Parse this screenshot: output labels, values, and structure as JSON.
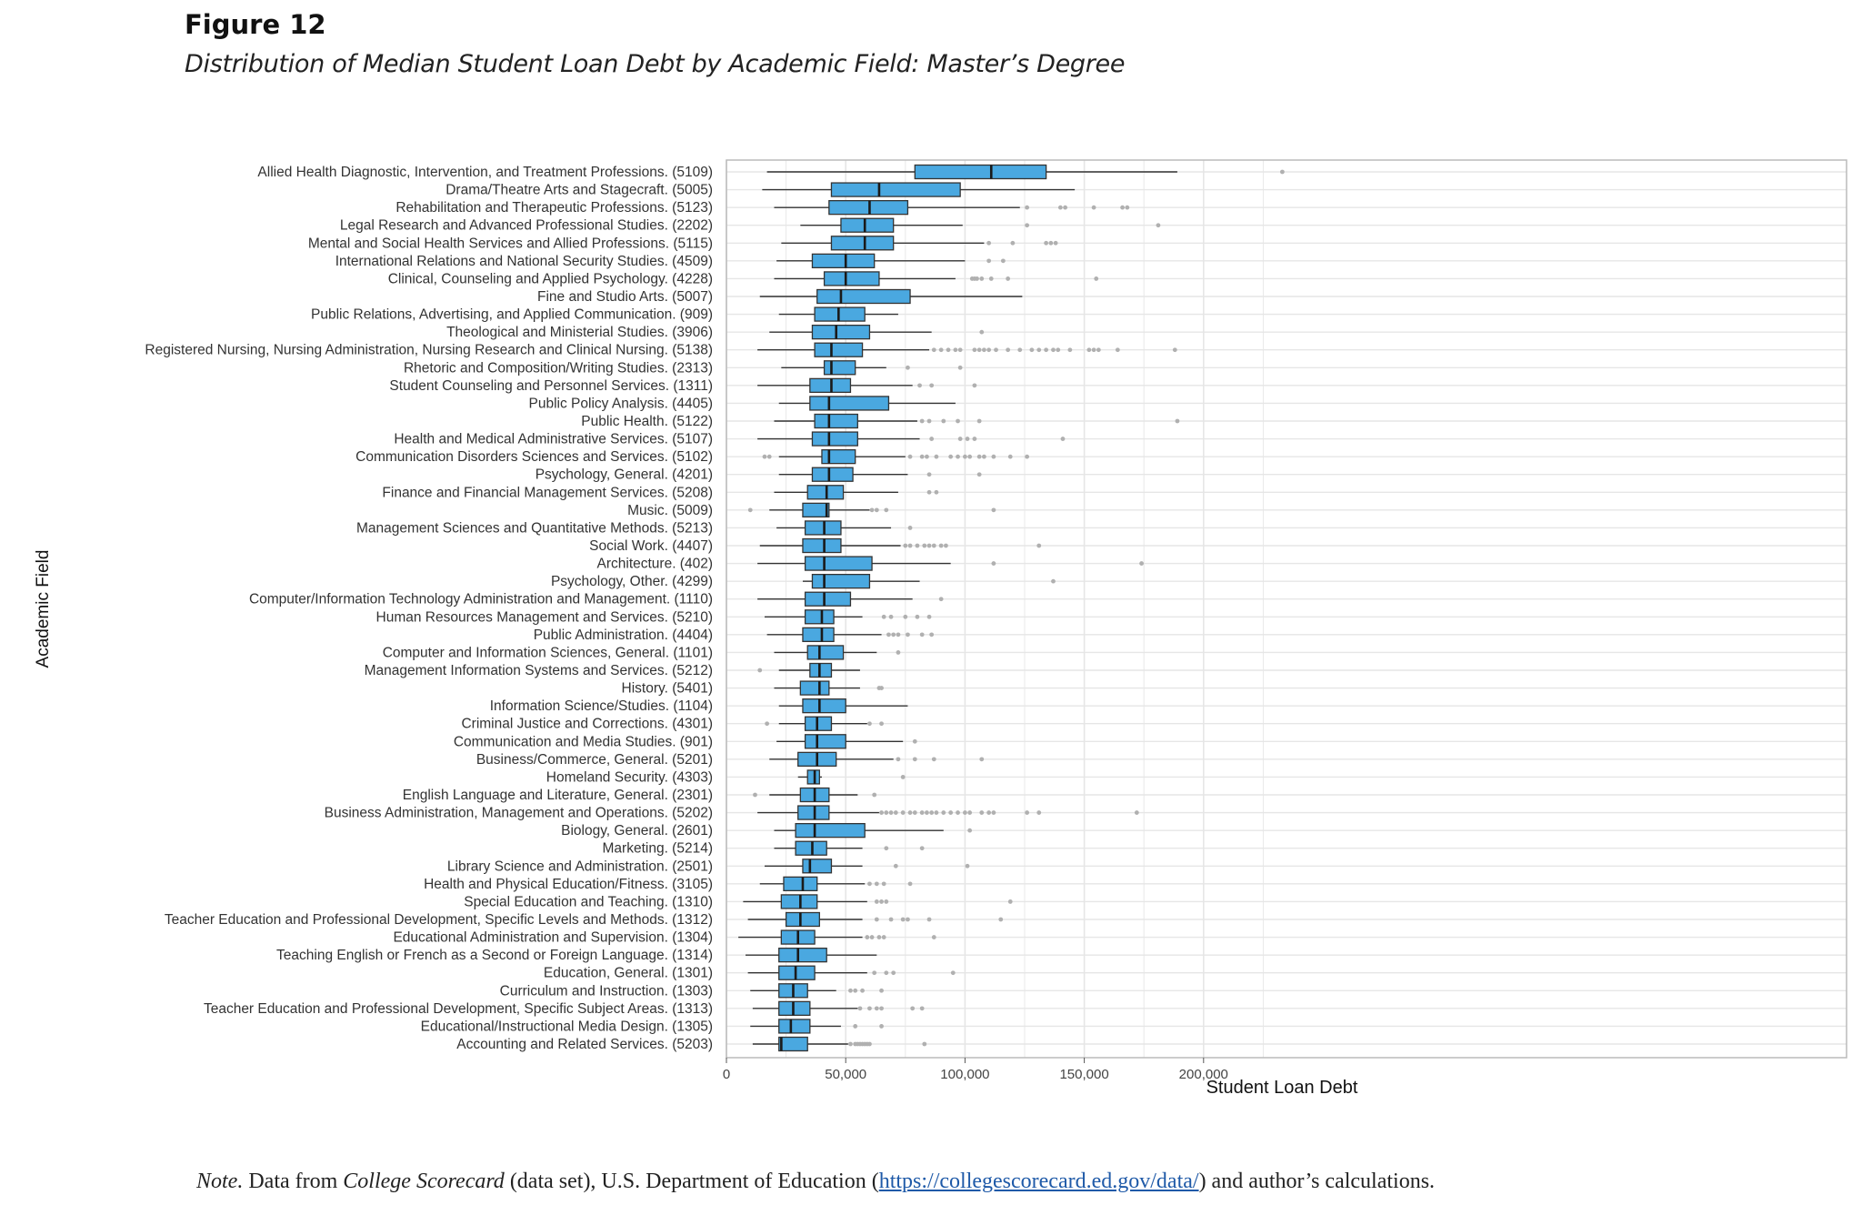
{
  "figure_label": "Figure 12",
  "figure_title": "Distribution of Median Student Loan Debt by Academic Field: Master’s Degree",
  "note": {
    "lead": "Note.",
    "text1": " Data from ",
    "source_title": "College Scorecard",
    "text2": " (data set), U.S. Department of Education (",
    "link": "https://collegescorecard.ed.gov/data/",
    "text3": ") and author’s calculations."
  },
  "colors": {
    "box_fill": "#4aa8e0",
    "box_stroke": "#333333",
    "outlier": "#b0b0b0",
    "grid": "#e6e6e6",
    "panel_border": "#bbbbbb"
  },
  "chart_data": {
    "type": "boxplot",
    "orientation": "horizontal",
    "xlabel": "Student Loan Debt",
    "ylabel": "Academic Field",
    "xlim": [
      0,
      235000
    ],
    "xticks": [
      0,
      50000,
      100000,
      150000,
      200000
    ],
    "xtick_labels": [
      "0",
      "50,000",
      "100,000",
      "150,000",
      "200,000"
    ],
    "grid": true,
    "categories": [
      {
        "label": "Allied Health Diagnostic, Intervention, and Treatment Professions. (5109)",
        "whisker_low": 17000,
        "q1": 79000,
        "median": 111000,
        "q3": 134000,
        "whisker_high": 189000,
        "outliers": [
          233000
        ]
      },
      {
        "label": "Drama/Theatre Arts and Stagecraft. (5005)",
        "whisker_low": 15000,
        "q1": 44000,
        "median": 64000,
        "q3": 98000,
        "whisker_high": 146000,
        "outliers": []
      },
      {
        "label": "Rehabilitation and Therapeutic Professions. (5123)",
        "whisker_low": 20000,
        "q1": 43000,
        "median": 60000,
        "q3": 76000,
        "whisker_high": 123000,
        "outliers": [
          126000,
          140000,
          142000,
          154000,
          166000,
          168000
        ]
      },
      {
        "label": "Legal Research and Advanced Professional Studies. (2202)",
        "whisker_low": 31000,
        "q1": 48000,
        "median": 58000,
        "q3": 70000,
        "whisker_high": 99000,
        "outliers": [
          126000,
          181000
        ]
      },
      {
        "label": "Mental and Social Health Services and Allied Professions. (5115)",
        "whisker_low": 23000,
        "q1": 44000,
        "median": 58000,
        "q3": 70000,
        "whisker_high": 108000,
        "outliers": [
          110000,
          120000,
          134000,
          136000,
          138000
        ]
      },
      {
        "label": "International Relations and National Security Studies. (4509)",
        "whisker_low": 21000,
        "q1": 36000,
        "median": 50000,
        "q3": 62000,
        "whisker_high": 100000,
        "outliers": [
          110000,
          116000
        ]
      },
      {
        "label": "Clinical, Counseling and Applied Psychology. (4228)",
        "whisker_low": 20000,
        "q1": 41000,
        "median": 50000,
        "q3": 64000,
        "whisker_high": 96000,
        "outliers": [
          103000,
          104000,
          105000,
          107000,
          111000,
          118000,
          155000
        ]
      },
      {
        "label": "Fine and Studio Arts. (5007)",
        "whisker_low": 14000,
        "q1": 38000,
        "median": 48000,
        "q3": 77000,
        "whisker_high": 124000,
        "outliers": []
      },
      {
        "label": "Public Relations, Advertising, and Applied Communication. (909)",
        "whisker_low": 22000,
        "q1": 37000,
        "median": 47000,
        "q3": 58000,
        "whisker_high": 72000,
        "outliers": []
      },
      {
        "label": "Theological and Ministerial Studies. (3906)",
        "whisker_low": 18000,
        "q1": 36000,
        "median": 46000,
        "q3": 60000,
        "whisker_high": 86000,
        "outliers": [
          107000
        ]
      },
      {
        "label": "Registered Nursing, Nursing Administration, Nursing Research and Clinical Nursing. (5138)",
        "whisker_low": 13000,
        "q1": 37000,
        "median": 44000,
        "q3": 57000,
        "whisker_high": 85000,
        "outliers": [
          87000,
          90000,
          93000,
          96000,
          98000,
          104000,
          106000,
          108000,
          110000,
          113000,
          118000,
          123000,
          128000,
          131000,
          134000,
          137000,
          139000,
          144000,
          152000,
          154000,
          156000,
          164000,
          188000
        ]
      },
      {
        "label": "Rhetoric and Composition/Writing Studies. (2313)",
        "whisker_low": 23000,
        "q1": 41000,
        "median": 44000,
        "q3": 54000,
        "whisker_high": 67000,
        "outliers": [
          76000,
          98000
        ]
      },
      {
        "label": "Student Counseling and Personnel Services. (1311)",
        "whisker_low": 13000,
        "q1": 35000,
        "median": 44000,
        "q3": 52000,
        "whisker_high": 78000,
        "outliers": [
          81000,
          86000,
          104000
        ]
      },
      {
        "label": "Public Policy Analysis. (4405)",
        "whisker_low": 22000,
        "q1": 35000,
        "median": 43000,
        "q3": 68000,
        "whisker_high": 96000,
        "outliers": []
      },
      {
        "label": "Public Health. (5122)",
        "whisker_low": 20000,
        "q1": 37000,
        "median": 43000,
        "q3": 55000,
        "whisker_high": 80000,
        "outliers": [
          82000,
          85000,
          91000,
          97000,
          106000,
          189000
        ]
      },
      {
        "label": "Health and Medical Administrative Services. (5107)",
        "whisker_low": 13000,
        "q1": 36000,
        "median": 43000,
        "q3": 55000,
        "whisker_high": 81000,
        "outliers": [
          86000,
          98000,
          101000,
          104000,
          141000
        ]
      },
      {
        "label": "Communication Disorders Sciences and Services. (5102)",
        "whisker_low": 22000,
        "q1": 40000,
        "median": 43000,
        "q3": 54000,
        "whisker_high": 75000,
        "outliers": [
          16000,
          18000,
          77000,
          82000,
          84000,
          88000,
          94000,
          97000,
          100000,
          102000,
          106000,
          108000,
          112000,
          119000,
          126000
        ]
      },
      {
        "label": "Psychology, General. (4201)",
        "whisker_low": 22000,
        "q1": 36000,
        "median": 43000,
        "q3": 53000,
        "whisker_high": 76000,
        "outliers": [
          85000,
          106000
        ]
      },
      {
        "label": "Finance and Financial Management Services. (5208)",
        "whisker_low": 20000,
        "q1": 34000,
        "median": 42000,
        "q3": 49000,
        "whisker_high": 72000,
        "outliers": [
          85000,
          88000
        ]
      },
      {
        "label": "Music. (5009)",
        "whisker_low": 18000,
        "q1": 32000,
        "median": 42000,
        "q3": 43000,
        "whisker_high": 60000,
        "outliers": [
          10000,
          61000,
          63000,
          67000,
          112000
        ]
      },
      {
        "label": "Management Sciences and Quantitative Methods. (5213)",
        "whisker_low": 21000,
        "q1": 33000,
        "median": 41000,
        "q3": 48000,
        "whisker_high": 69000,
        "outliers": [
          77000
        ]
      },
      {
        "label": "Social Work. (4407)",
        "whisker_low": 14000,
        "q1": 32000,
        "median": 41000,
        "q3": 48000,
        "whisker_high": 73000,
        "outliers": [
          75000,
          77000,
          80000,
          83000,
          85000,
          87000,
          90000,
          92000,
          131000
        ]
      },
      {
        "label": "Architecture. (402)",
        "whisker_low": 13000,
        "q1": 33000,
        "median": 41000,
        "q3": 61000,
        "whisker_high": 94000,
        "outliers": [
          112000,
          174000
        ]
      },
      {
        "label": "Psychology, Other. (4299)",
        "whisker_low": 32000,
        "q1": 36000,
        "median": 41000,
        "q3": 60000,
        "whisker_high": 81000,
        "outliers": [
          137000
        ]
      },
      {
        "label": "Computer/Information Technology Administration and Management. (1110)",
        "whisker_low": 13000,
        "q1": 33000,
        "median": 41000,
        "q3": 52000,
        "whisker_high": 78000,
        "outliers": [
          90000
        ]
      },
      {
        "label": "Human Resources Management and Services. (5210)",
        "whisker_low": 16000,
        "q1": 33000,
        "median": 40000,
        "q3": 45000,
        "whisker_high": 57000,
        "outliers": [
          66000,
          69000,
          75000,
          80000,
          85000
        ]
      },
      {
        "label": "Public Administration. (4404)",
        "whisker_low": 17000,
        "q1": 32000,
        "median": 40000,
        "q3": 45000,
        "whisker_high": 65000,
        "outliers": [
          68000,
          70000,
          72000,
          76000,
          82000,
          86000
        ]
      },
      {
        "label": "Computer and Information Sciences, General. (1101)",
        "whisker_low": 20000,
        "q1": 34000,
        "median": 39000,
        "q3": 49000,
        "whisker_high": 63000,
        "outliers": [
          72000
        ]
      },
      {
        "label": "Management Information Systems and Services. (5212)",
        "whisker_low": 22000,
        "q1": 35000,
        "median": 39000,
        "q3": 44000,
        "whisker_high": 56000,
        "outliers": [
          14000
        ]
      },
      {
        "label": "History. (5401)",
        "whisker_low": 20000,
        "q1": 31000,
        "median": 39000,
        "q3": 43000,
        "whisker_high": 56000,
        "outliers": [
          64000,
          65000
        ]
      },
      {
        "label": "Information Science/Studies. (1104)",
        "whisker_low": 22000,
        "q1": 32000,
        "median": 39000,
        "q3": 50000,
        "whisker_high": 76000,
        "outliers": []
      },
      {
        "label": "Criminal Justice and Corrections. (4301)",
        "whisker_low": 22000,
        "q1": 33000,
        "median": 38000,
        "q3": 44000,
        "whisker_high": 59000,
        "outliers": [
          17000,
          60000,
          65000
        ]
      },
      {
        "label": "Communication and Media Studies. (901)",
        "whisker_low": 21000,
        "q1": 33000,
        "median": 38000,
        "q3": 50000,
        "whisker_high": 74000,
        "outliers": [
          79000
        ]
      },
      {
        "label": "Business/Commerce, General. (5201)",
        "whisker_low": 18000,
        "q1": 30000,
        "median": 38000,
        "q3": 46000,
        "whisker_high": 70000,
        "outliers": [
          72000,
          79000,
          87000,
          107000
        ]
      },
      {
        "label": "Homeland Security. (4303)",
        "whisker_low": 30000,
        "q1": 34000,
        "median": 37000,
        "q3": 39000,
        "whisker_high": 40000,
        "outliers": [
          74000
        ]
      },
      {
        "label": "English Language and Literature, General. (2301)",
        "whisker_low": 18000,
        "q1": 31000,
        "median": 37000,
        "q3": 43000,
        "whisker_high": 55000,
        "outliers": [
          12000,
          62000
        ]
      },
      {
        "label": "Business Administration, Management and Operations. (5202)",
        "whisker_low": 13000,
        "q1": 30000,
        "median": 37000,
        "q3": 43000,
        "whisker_high": 64000,
        "outliers": [
          65000,
          67000,
          69000,
          71000,
          74000,
          77000,
          79000,
          82000,
          84000,
          86000,
          88000,
          91000,
          94000,
          97000,
          100000,
          102000,
          107000,
          110000,
          112000,
          126000,
          131000,
          172000
        ]
      },
      {
        "label": "Biology, General. (2601)",
        "whisker_low": 20000,
        "q1": 29000,
        "median": 37000,
        "q3": 58000,
        "whisker_high": 91000,
        "outliers": [
          102000
        ]
      },
      {
        "label": "Marketing. (5214)",
        "whisker_low": 20000,
        "q1": 29000,
        "median": 36000,
        "q3": 42000,
        "whisker_high": 57000,
        "outliers": [
          67000,
          82000
        ]
      },
      {
        "label": "Library Science and Administration. (2501)",
        "whisker_low": 16000,
        "q1": 32000,
        "median": 35000,
        "q3": 44000,
        "whisker_high": 57000,
        "outliers": [
          71000,
          101000
        ]
      },
      {
        "label": "Health and Physical Education/Fitness. (3105)",
        "whisker_low": 14000,
        "q1": 24000,
        "median": 32000,
        "q3": 38000,
        "whisker_high": 58000,
        "outliers": [
          60000,
          63000,
          66000,
          77000
        ]
      },
      {
        "label": "Special Education and Teaching. (1310)",
        "whisker_low": 7000,
        "q1": 23000,
        "median": 31000,
        "q3": 38000,
        "whisker_high": 59000,
        "outliers": [
          63000,
          65000,
          67000,
          119000
        ]
      },
      {
        "label": "Teacher Education and Professional Development, Specific Levels and Methods. (1312)",
        "whisker_low": 9000,
        "q1": 25000,
        "median": 31000,
        "q3": 39000,
        "whisker_high": 57000,
        "outliers": [
          63000,
          69000,
          74000,
          76000,
          85000,
          115000
        ]
      },
      {
        "label": "Educational Administration and Supervision. (1304)",
        "whisker_low": 5000,
        "q1": 23000,
        "median": 30000,
        "q3": 37000,
        "whisker_high": 57000,
        "outliers": [
          59000,
          61000,
          64000,
          66000,
          87000
        ]
      },
      {
        "label": "Teaching English or French as a Second or Foreign Language. (1314)",
        "whisker_low": 8000,
        "q1": 22000,
        "median": 30000,
        "q3": 42000,
        "whisker_high": 63000,
        "outliers": []
      },
      {
        "label": "Education, General. (1301)",
        "whisker_low": 9000,
        "q1": 22000,
        "median": 29000,
        "q3": 37000,
        "whisker_high": 59000,
        "outliers": [
          62000,
          67000,
          70000,
          95000
        ]
      },
      {
        "label": "Curriculum and Instruction. (1303)",
        "whisker_low": 10000,
        "q1": 22000,
        "median": 28000,
        "q3": 34000,
        "whisker_high": 46000,
        "outliers": [
          52000,
          54000,
          57000,
          65000
        ]
      },
      {
        "label": "Teacher Education and Professional Development, Specific Subject Areas. (1313)",
        "whisker_low": 11000,
        "q1": 22000,
        "median": 28000,
        "q3": 35000,
        "whisker_high": 55000,
        "outliers": [
          56000,
          60000,
          63000,
          65000,
          78000,
          82000
        ]
      },
      {
        "label": "Educational/Instructional Media Design. (1305)",
        "whisker_low": 10000,
        "q1": 22000,
        "median": 27000,
        "q3": 35000,
        "whisker_high": 48000,
        "outliers": [
          54000,
          65000
        ]
      },
      {
        "label": "Accounting and Related Services. (5203)",
        "whisker_low": 11000,
        "q1": 22000,
        "median": 23000,
        "q3": 34000,
        "whisker_high": 51000,
        "outliers": [
          52000,
          54000,
          55000,
          56000,
          57000,
          58000,
          59000,
          60000,
          83000
        ]
      }
    ]
  }
}
